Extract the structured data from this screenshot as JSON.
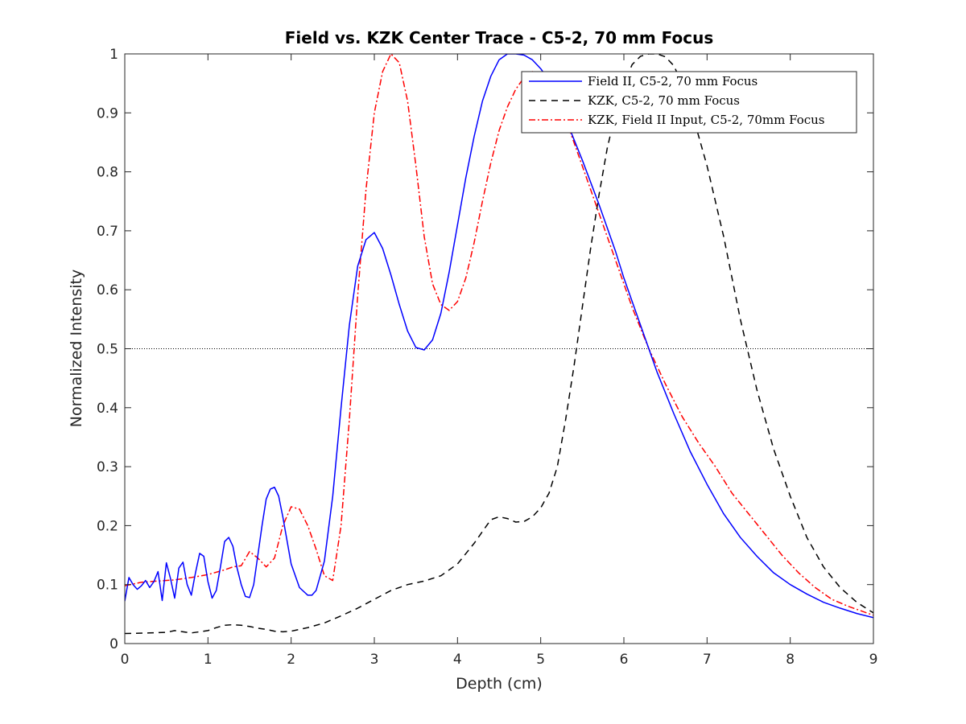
{
  "chart_data": {
    "type": "line",
    "title": "Field vs. KZK Center Trace - C5-2, 70 mm Focus",
    "xlabel": "Depth (cm)",
    "ylabel": "Normalized Intensity",
    "xlim": [
      0,
      9
    ],
    "ylim": [
      0,
      1
    ],
    "xticks": [
      "0",
      "1",
      "2",
      "3",
      "4",
      "5",
      "6",
      "7",
      "8",
      "9"
    ],
    "yticks": [
      "0",
      "0.1",
      "0.2",
      "0.3",
      "0.4",
      "0.5",
      "0.6",
      "0.7",
      "0.8",
      "0.9",
      "1"
    ],
    "grid": false,
    "legend_position": "top-right",
    "reference_line": {
      "y": 0.5,
      "style": "dotted"
    },
    "series": [
      {
        "name": "Field II, C5-2, 70 mm Focus",
        "color": "#0000ff",
        "style": "solid",
        "x": [
          0,
          0.05,
          0.1,
          0.15,
          0.2,
          0.25,
          0.3,
          0.35,
          0.4,
          0.45,
          0.5,
          0.55,
          0.6,
          0.65,
          0.7,
          0.75,
          0.8,
          0.85,
          0.9,
          0.95,
          1.0,
          1.05,
          1.1,
          1.15,
          1.2,
          1.25,
          1.3,
          1.35,
          1.4,
          1.45,
          1.5,
          1.55,
          1.6,
          1.65,
          1.7,
          1.75,
          1.8,
          1.85,
          1.9,
          1.95,
          2.0,
          2.1,
          2.2,
          2.25,
          2.3,
          2.4,
          2.5,
          2.6,
          2.7,
          2.8,
          2.9,
          3.0,
          3.1,
          3.2,
          3.3,
          3.4,
          3.5,
          3.6,
          3.7,
          3.8,
          3.9,
          4.0,
          4.1,
          4.2,
          4.3,
          4.4,
          4.5,
          4.6,
          4.7,
          4.8,
          4.9,
          5.0,
          5.1,
          5.2,
          5.3,
          5.5,
          5.7,
          5.9,
          6.0,
          6.2,
          6.4,
          6.6,
          6.8,
          7.0,
          7.2,
          7.4,
          7.6,
          7.8,
          8.0,
          8.2,
          8.4,
          8.6,
          8.8,
          9.0
        ],
        "y": [
          0.072,
          0.112,
          0.1,
          0.092,
          0.098,
          0.107,
          0.095,
          0.105,
          0.122,
          0.073,
          0.137,
          0.11,
          0.077,
          0.128,
          0.138,
          0.1,
          0.082,
          0.12,
          0.153,
          0.148,
          0.105,
          0.077,
          0.09,
          0.13,
          0.173,
          0.18,
          0.165,
          0.128,
          0.1,
          0.08,
          0.078,
          0.1,
          0.15,
          0.2,
          0.245,
          0.262,
          0.265,
          0.25,
          0.215,
          0.175,
          0.135,
          0.095,
          0.082,
          0.082,
          0.09,
          0.14,
          0.25,
          0.4,
          0.54,
          0.64,
          0.685,
          0.697,
          0.67,
          0.625,
          0.575,
          0.53,
          0.502,
          0.498,
          0.515,
          0.56,
          0.63,
          0.71,
          0.79,
          0.86,
          0.92,
          0.962,
          0.99,
          1.0,
          1.0,
          0.998,
          0.99,
          0.975,
          0.955,
          0.925,
          0.89,
          0.82,
          0.745,
          0.665,
          0.62,
          0.54,
          0.46,
          0.39,
          0.325,
          0.27,
          0.22,
          0.18,
          0.148,
          0.12,
          0.1,
          0.084,
          0.07,
          0.06,
          0.051,
          0.044
        ]
      },
      {
        "name": "KZK, C5-2, 70 mm Focus",
        "color": "#000000",
        "style": "dashed",
        "x": [
          0,
          0.3,
          0.5,
          0.6,
          0.7,
          0.8,
          0.9,
          1.0,
          1.1,
          1.2,
          1.3,
          1.4,
          1.5,
          1.6,
          1.7,
          1.8,
          1.9,
          2.0,
          2.2,
          2.4,
          2.6,
          2.8,
          3.0,
          3.2,
          3.4,
          3.6,
          3.8,
          4.0,
          4.2,
          4.3,
          4.4,
          4.5,
          4.6,
          4.7,
          4.8,
          4.9,
          5.0,
          5.1,
          5.2,
          5.3,
          5.4,
          5.5,
          5.6,
          5.7,
          5.8,
          5.9,
          6.0,
          6.1,
          6.2,
          6.3,
          6.4,
          6.5,
          6.6,
          6.7,
          6.8,
          6.9,
          7.0,
          7.1,
          7.2,
          7.3,
          7.4,
          7.5,
          7.6,
          7.8,
          8.0,
          8.2,
          8.4,
          8.6,
          8.8,
          9.0
        ],
        "y": [
          0.017,
          0.018,
          0.019,
          0.022,
          0.02,
          0.018,
          0.02,
          0.022,
          0.027,
          0.031,
          0.032,
          0.031,
          0.029,
          0.026,
          0.024,
          0.021,
          0.02,
          0.021,
          0.027,
          0.035,
          0.047,
          0.06,
          0.075,
          0.09,
          0.1,
          0.106,
          0.115,
          0.135,
          0.17,
          0.19,
          0.21,
          0.215,
          0.212,
          0.206,
          0.207,
          0.215,
          0.23,
          0.255,
          0.3,
          0.38,
          0.47,
          0.57,
          0.67,
          0.76,
          0.84,
          0.9,
          0.95,
          0.982,
          0.996,
          1.0,
          1.0,
          0.995,
          0.98,
          0.95,
          0.91,
          0.86,
          0.81,
          0.75,
          0.69,
          0.62,
          0.55,
          0.49,
          0.43,
          0.33,
          0.25,
          0.18,
          0.13,
          0.095,
          0.07,
          0.052
        ]
      },
      {
        "name": "KZK, Field II Input, C5-2, 70mm Focus",
        "color": "#ff0000",
        "style": "dashdot",
        "x": [
          0,
          0.2,
          0.4,
          0.6,
          0.8,
          1.0,
          1.2,
          1.3,
          1.4,
          1.5,
          1.6,
          1.7,
          1.8,
          1.9,
          2.0,
          2.1,
          2.2,
          2.3,
          2.4,
          2.5,
          2.6,
          2.7,
          2.8,
          2.9,
          3.0,
          3.1,
          3.2,
          3.3,
          3.4,
          3.5,
          3.6,
          3.7,
          3.8,
          3.9,
          4.0,
          4.1,
          4.2,
          4.3,
          4.4,
          4.5,
          4.6,
          4.7,
          4.8,
          4.9,
          5.0,
          5.1,
          5.2,
          5.3,
          5.5,
          5.7,
          5.9,
          6.1,
          6.3,
          6.5,
          6.7,
          6.9,
          7.1,
          7.3,
          7.5,
          7.7,
          7.9,
          8.1,
          8.3,
          8.5,
          8.7,
          9.0
        ],
        "y": [
          0.098,
          0.104,
          0.106,
          0.108,
          0.112,
          0.117,
          0.125,
          0.13,
          0.132,
          0.156,
          0.145,
          0.13,
          0.145,
          0.2,
          0.232,
          0.228,
          0.2,
          0.16,
          0.115,
          0.107,
          0.2,
          0.38,
          0.59,
          0.77,
          0.9,
          0.97,
          1.0,
          0.985,
          0.92,
          0.81,
          0.69,
          0.61,
          0.575,
          0.565,
          0.58,
          0.62,
          0.68,
          0.75,
          0.815,
          0.87,
          0.91,
          0.94,
          0.96,
          0.97,
          0.968,
          0.955,
          0.93,
          0.89,
          0.81,
          0.73,
          0.65,
          0.57,
          0.5,
          0.44,
          0.385,
          0.34,
          0.3,
          0.255,
          0.22,
          0.185,
          0.15,
          0.12,
          0.095,
          0.075,
          0.063,
          0.048
        ]
      }
    ]
  }
}
